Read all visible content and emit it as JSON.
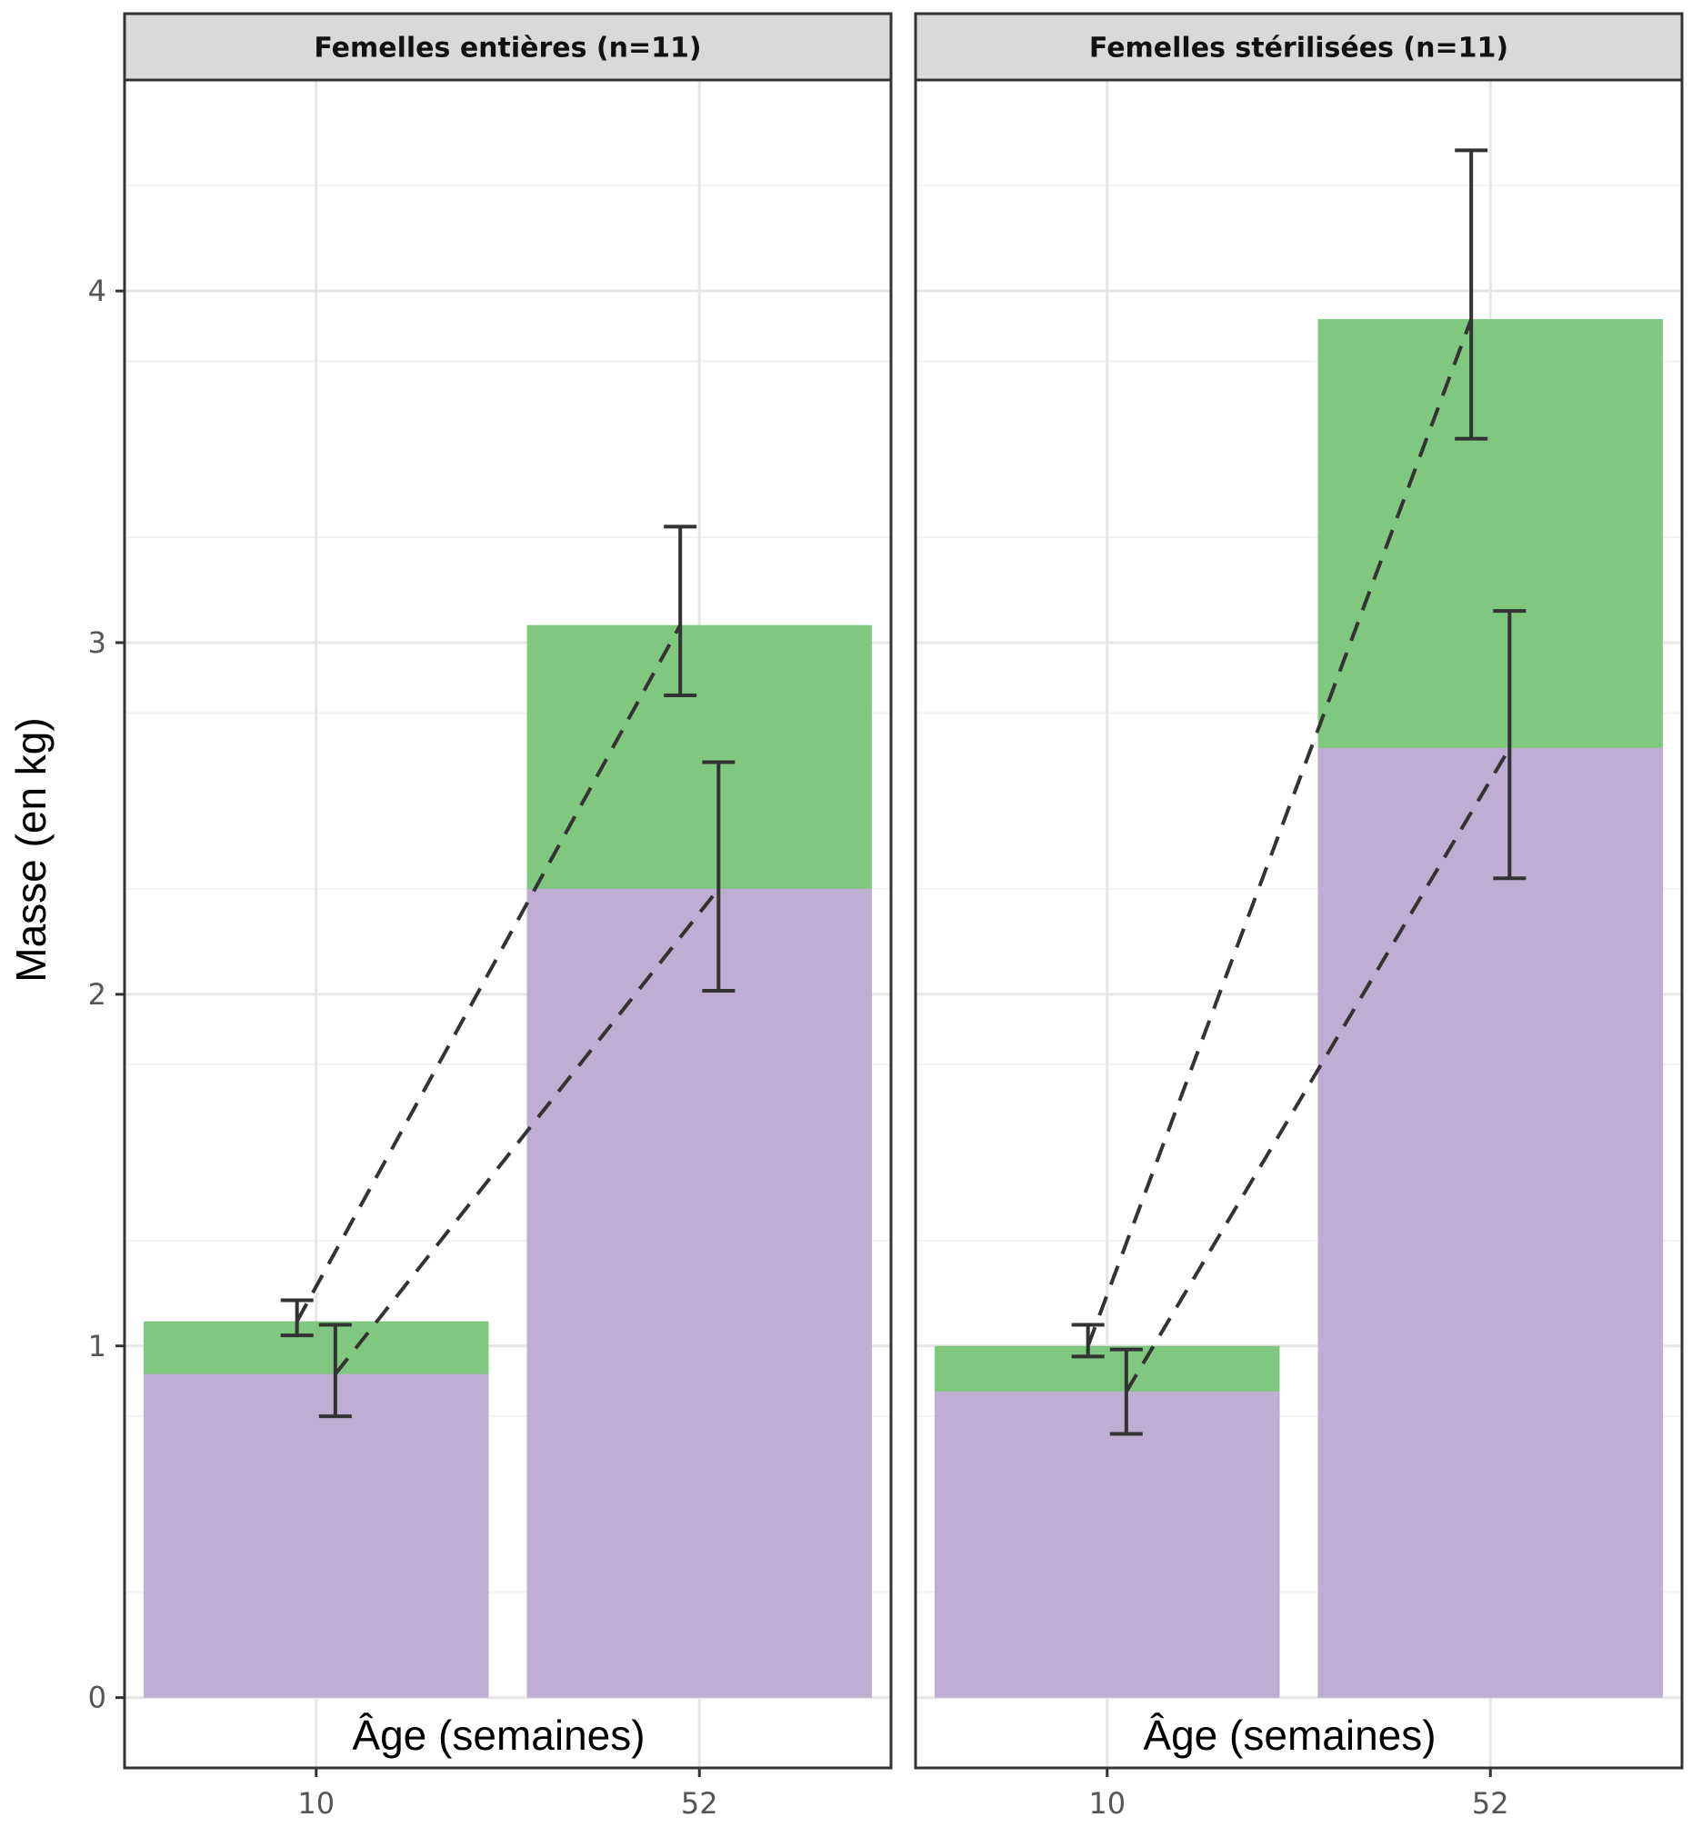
{
  "chart_data": {
    "type": "bar",
    "ylabel": "Masse (en kg)",
    "xlabel": "Âge (semaines)",
    "ylim": [
      -0.2,
      4.6
    ],
    "y_ticks": [
      0,
      1,
      2,
      3,
      4
    ],
    "categories": [
      "10",
      "52"
    ],
    "grid": true,
    "colors": {
      "green": "#80c77f",
      "purple": "#beaed4",
      "errorbar": "#333333",
      "dashed": "#333333"
    },
    "panels": [
      {
        "title": "Femelles entières (n=11)",
        "categories": [
          "10",
          "52"
        ],
        "series": [
          {
            "color": "green",
            "values": [
              1.07,
              3.05
            ],
            "errors": [
              [
                1.03,
                1.13
              ],
              [
                2.85,
                3.33
              ]
            ],
            "error_x_offset": -0.05
          },
          {
            "color": "purple",
            "values": [
              0.92,
              2.3
            ],
            "errors": [
              [
                0.8,
                1.06
              ],
              [
                2.01,
                2.66
              ]
            ],
            "error_x_offset": 0.05
          }
        ]
      },
      {
        "title": "Femelles stérilisées (n=11)",
        "categories": [
          "10",
          "52"
        ],
        "series": [
          {
            "color": "green",
            "values": [
              1.0,
              3.92
            ],
            "errors": [
              [
                0.97,
                1.06
              ],
              [
                3.58,
                4.4
              ]
            ],
            "error_x_offset": -0.05
          },
          {
            "color": "purple",
            "values": [
              0.87,
              2.7
            ],
            "errors": [
              [
                0.75,
                0.99
              ],
              [
                2.33,
                3.09
              ]
            ],
            "error_x_offset": 0.05
          }
        ]
      }
    ]
  }
}
